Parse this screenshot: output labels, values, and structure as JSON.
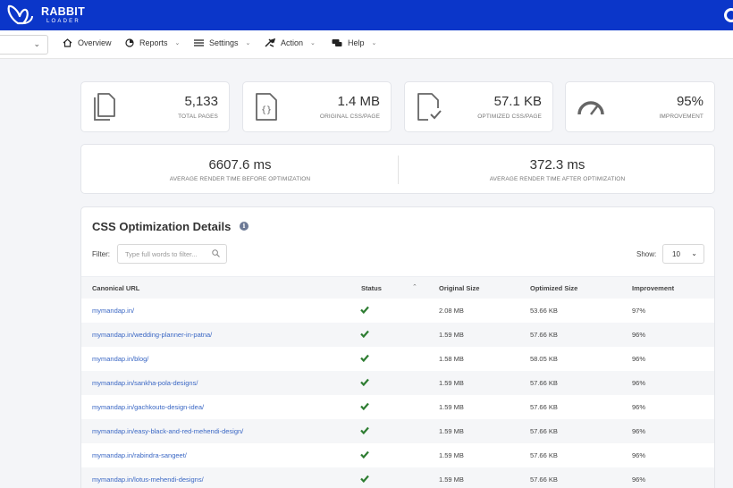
{
  "brand": {
    "name": "RABBIT",
    "sub": "LOADER",
    "color": "#0b36c9"
  },
  "nav": {
    "items": [
      {
        "label": "Overview",
        "icon": "home-icon"
      },
      {
        "label": "Reports",
        "icon": "pie-chart-icon"
      },
      {
        "label": "Settings",
        "icon": "sliders-icon"
      },
      {
        "label": "Action",
        "icon": "tools-icon"
      },
      {
        "label": "Help",
        "icon": "chat-icon"
      }
    ]
  },
  "stats": [
    {
      "value": "5,133",
      "label": "TOTAL PAGES",
      "icon": "document-icon"
    },
    {
      "value": "1.4 MB",
      "label": "ORIGINAL CSS/PAGE",
      "icon": "css-file-icon"
    },
    {
      "value": "57.1 KB",
      "label": "OPTIMIZED CSS/PAGE",
      "icon": "file-check-icon"
    },
    {
      "value": "95%",
      "label": "IMPROVEMENT",
      "icon": "gauge-icon"
    }
  ],
  "render": {
    "before_value": "6607.6 ms",
    "before_label": "AVERAGE RENDER TIME BEFORE OPTIMIZATION",
    "after_value": "372.3 ms",
    "after_label": "AVERAGE RENDER TIME AFTER OPTIMIZATION"
  },
  "details": {
    "title": "CSS Optimization Details",
    "info_icon": "i",
    "filter_label": "Filter:",
    "filter_placeholder": "Type full words to filter...",
    "show_label": "Show:",
    "show_value": "10",
    "columns": [
      "Canonical URL",
      "Status",
      "Original Size",
      "Optimized Size",
      "Improvement"
    ],
    "rows": [
      {
        "url": "mymandap.in/",
        "status": "ok",
        "original": "2.08 MB",
        "optimized": "53.66 KB",
        "improvement": "97%"
      },
      {
        "url": "mymandap.in/wedding-planner-in-patna/",
        "status": "ok",
        "original": "1.59 MB",
        "optimized": "57.66 KB",
        "improvement": "96%"
      },
      {
        "url": "mymandap.in/blog/",
        "status": "ok",
        "original": "1.58 MB",
        "optimized": "58.05 KB",
        "improvement": "96%"
      },
      {
        "url": "mymandap.in/sankha-pola-designs/",
        "status": "ok",
        "original": "1.59 MB",
        "optimized": "57.66 KB",
        "improvement": "96%"
      },
      {
        "url": "mymandap.in/gachkouto-design-idea/",
        "status": "ok",
        "original": "1.59 MB",
        "optimized": "57.66 KB",
        "improvement": "96%"
      },
      {
        "url": "mymandap.in/easy-black-and-red-mehendi-design/",
        "status": "ok",
        "original": "1.59 MB",
        "optimized": "57.66 KB",
        "improvement": "96%"
      },
      {
        "url": "mymandap.in/rabindra-sangeet/",
        "status": "ok",
        "original": "1.59 MB",
        "optimized": "57.66 KB",
        "improvement": "96%"
      },
      {
        "url": "mymandap.in/lotus-mehendi-designs/",
        "status": "ok",
        "original": "1.59 MB",
        "optimized": "57.66 KB",
        "improvement": "96%"
      }
    ]
  },
  "colors": {
    "check": "#2e7d32",
    "link": "#3a67c4",
    "icon": "#666666"
  }
}
